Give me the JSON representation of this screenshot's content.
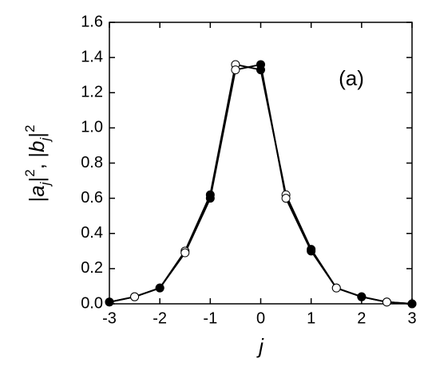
{
  "chart_data": {
    "type": "line",
    "xlabel": "j",
    "ylabel_parts": [
      {
        "text": "|",
        "style": "normal"
      },
      {
        "text": "a",
        "style": "italic"
      },
      {
        "text": "j",
        "style": "sub"
      },
      {
        "text": "|",
        "style": "normal"
      },
      {
        "text": "2",
        "style": "sup"
      },
      {
        "text": ",  |",
        "style": "normal"
      },
      {
        "text": "b",
        "style": "italic"
      },
      {
        "text": "j",
        "style": "sub"
      },
      {
        "text": "|",
        "style": "normal"
      },
      {
        "text": "2",
        "style": "sup"
      }
    ],
    "annotation": "(a)",
    "x": [
      -3,
      -2.5,
      -2,
      -1.5,
      -1,
      -0.5,
      0,
      0.5,
      1,
      1.5,
      2,
      2.5,
      3
    ],
    "series": [
      {
        "color": "#000000",
        "values": [
          0.01,
          0.04,
          0.09,
          0.3,
          0.62,
          1.36,
          1.33,
          0.62,
          0.31,
          0.09,
          0.04,
          0.01,
          0.0
        ],
        "point_fill": [
          "#000000",
          "#ffffff",
          "#000000",
          "#ffffff",
          "#000000",
          "#ffffff",
          "#000000",
          "#ffffff",
          "#000000",
          "#ffffff",
          "#000000",
          "#ffffff",
          "#000000"
        ]
      },
      {
        "color": "#000000",
        "values": [
          0.01,
          0.04,
          0.09,
          0.29,
          0.6,
          1.33,
          1.36,
          0.6,
          0.3,
          0.09,
          0.04,
          0.01,
          0.0
        ],
        "point_fill": [
          "#000000",
          "#ffffff",
          "#000000",
          "#ffffff",
          "#000000",
          "#ffffff",
          "#000000",
          "#ffffff",
          "#000000",
          "#ffffff",
          "#000000",
          "#ffffff",
          "#000000"
        ]
      }
    ],
    "xlim": [
      -3,
      3
    ],
    "xticks": [
      -3,
      -2,
      -1,
      0,
      1,
      2,
      3
    ],
    "ylim": [
      0,
      1.6
    ],
    "yticks": [
      {
        "value": 0,
        "label": "0.0"
      },
      {
        "value": 0.2,
        "label": "0.2"
      },
      {
        "value": 0.4,
        "label": "0.4"
      },
      {
        "value": 0.6,
        "label": "0.6"
      },
      {
        "value": 0.8,
        "label": "0.8"
      },
      {
        "value": 1.0,
        "label": "1.0"
      },
      {
        "value": 1.2,
        "label": "1.2"
      },
      {
        "value": 1.4,
        "label": "1.4"
      },
      {
        "value": 1.6,
        "label": "1.6"
      }
    ],
    "grid": false
  }
}
